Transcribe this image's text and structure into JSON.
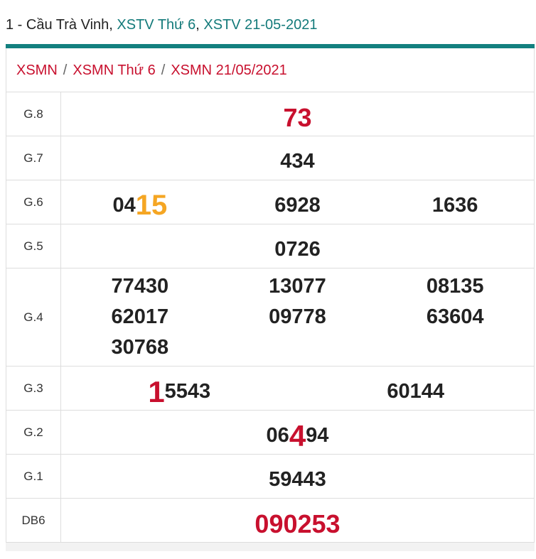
{
  "header": {
    "prefix": "1 - Cầu Trà Vinh, ",
    "link1": "XSTV Thứ 6",
    "comma": ", ",
    "link2": "XSTV 21-05-2021"
  },
  "breadcrumb": {
    "items": [
      "XSMN",
      "XSMN Thứ 6",
      "XSMN 21/05/2021"
    ],
    "separator": "/"
  },
  "table": {
    "rows": [
      {
        "label": "G.8",
        "columns": 1,
        "numbers": [
          [
            {
              "text": "73",
              "style": "red-large"
            }
          ]
        ]
      },
      {
        "label": "G.7",
        "columns": 1,
        "numbers": [
          [
            {
              "text": "434"
            }
          ]
        ]
      },
      {
        "label": "G.6",
        "columns": 3,
        "numbers": [
          [
            {
              "text": "04"
            },
            {
              "text": "15",
              "style": "big-orange"
            }
          ],
          [
            {
              "text": "6928"
            }
          ],
          [
            {
              "text": "1636"
            }
          ]
        ]
      },
      {
        "label": "G.5",
        "columns": 1,
        "numbers": [
          [
            {
              "text": "0726"
            }
          ]
        ]
      },
      {
        "label": "G.4",
        "columns": 3,
        "numbers": [
          [
            {
              "text": "77430"
            }
          ],
          [
            {
              "text": "13077"
            }
          ],
          [
            {
              "text": "08135"
            }
          ],
          [
            {
              "text": "62017"
            }
          ],
          [
            {
              "text": "09778"
            }
          ],
          [
            {
              "text": "63604"
            }
          ],
          [
            {
              "text": "30768"
            }
          ]
        ]
      },
      {
        "label": "G.3",
        "columns": 2,
        "numbers": [
          [
            {
              "text": "1",
              "style": "big-red"
            },
            {
              "text": "5543"
            }
          ],
          [
            {
              "text": "60144"
            }
          ]
        ]
      },
      {
        "label": "G.2",
        "columns": 1,
        "numbers": [
          [
            {
              "text": "06"
            },
            {
              "text": "4",
              "style": "big-red"
            },
            {
              "text": "94"
            }
          ]
        ]
      },
      {
        "label": "G.1",
        "columns": 1,
        "numbers": [
          [
            {
              "text": "59443"
            }
          ]
        ]
      },
      {
        "label": "DB6",
        "columns": 1,
        "numbers": [
          [
            {
              "text": "090253",
              "style": "red-large"
            }
          ]
        ]
      }
    ]
  }
}
